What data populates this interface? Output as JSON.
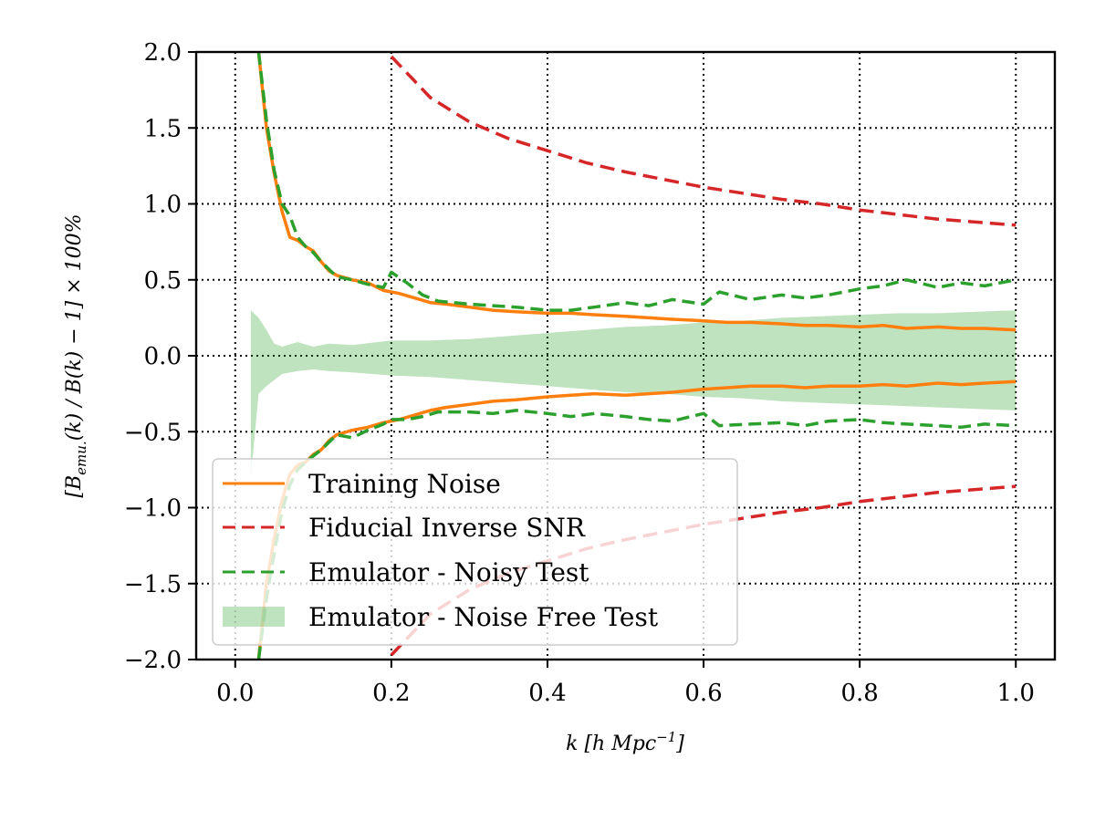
{
  "chart_data": {
    "type": "line",
    "title": "",
    "xlabel": "k [h Mpc^-1]",
    "ylabel": "[B_emu.(k) / B(k) − 1] × 100%",
    "xlim": [
      -0.05,
      1.05
    ],
    "ylim": [
      -2.0,
      2.0
    ],
    "xticks": [
      0.0,
      0.2,
      0.4,
      0.6,
      0.8,
      1.0
    ],
    "yticks": [
      -2.0,
      -1.5,
      -1.0,
      -0.5,
      0.0,
      0.5,
      1.0,
      1.5,
      2.0
    ],
    "xtick_labels": [
      "0.0",
      "0.2",
      "0.4",
      "0.6",
      "0.8",
      "1.0"
    ],
    "ytick_labels": [
      "−2.0",
      "−1.5",
      "−1.0",
      "−0.5",
      "0.0",
      "0.5",
      "1.0",
      "1.5",
      "2.0"
    ],
    "grid": true,
    "legend_position": "lower-left",
    "colors": {
      "training": "#ff7f0e",
      "snr": "#d62728",
      "noisy": "#2ca02c",
      "band": "#2ca02c"
    },
    "series": [
      {
        "name": "Training Noise",
        "style": "solid",
        "upper": {
          "x": [
            0.03,
            0.04,
            0.05,
            0.06,
            0.07,
            0.08,
            0.09,
            0.1,
            0.11,
            0.12,
            0.13,
            0.15,
            0.17,
            0.19,
            0.21,
            0.23,
            0.25,
            0.27,
            0.3,
            0.33,
            0.36,
            0.4,
            0.43,
            0.46,
            0.5,
            0.53,
            0.56,
            0.6,
            0.63,
            0.66,
            0.7,
            0.73,
            0.76,
            0.8,
            0.83,
            0.86,
            0.9,
            0.93,
            0.96,
            1.0
          ],
          "y": [
            2.0,
            1.5,
            1.2,
            0.95,
            0.78,
            0.76,
            0.72,
            0.69,
            0.62,
            0.56,
            0.53,
            0.5,
            0.48,
            0.43,
            0.41,
            0.38,
            0.35,
            0.34,
            0.32,
            0.3,
            0.29,
            0.28,
            0.28,
            0.27,
            0.26,
            0.25,
            0.24,
            0.23,
            0.22,
            0.22,
            0.21,
            0.2,
            0.2,
            0.19,
            0.2,
            0.18,
            0.19,
            0.18,
            0.18,
            0.17
          ]
        },
        "lower": {
          "x": [
            0.03,
            0.04,
            0.05,
            0.06,
            0.07,
            0.08,
            0.09,
            0.1,
            0.11,
            0.12,
            0.13,
            0.15,
            0.17,
            0.19,
            0.21,
            0.23,
            0.25,
            0.27,
            0.3,
            0.33,
            0.36,
            0.4,
            0.43,
            0.46,
            0.5,
            0.53,
            0.56,
            0.6,
            0.63,
            0.66,
            0.7,
            0.73,
            0.76,
            0.8,
            0.83,
            0.86,
            0.9,
            0.93,
            0.96,
            1.0
          ],
          "y": [
            -2.0,
            -1.5,
            -1.2,
            -0.95,
            -0.78,
            -0.72,
            -0.7,
            -0.65,
            -0.62,
            -0.56,
            -0.52,
            -0.49,
            -0.47,
            -0.44,
            -0.42,
            -0.39,
            -0.36,
            -0.34,
            -0.32,
            -0.3,
            -0.29,
            -0.27,
            -0.26,
            -0.25,
            -0.26,
            -0.25,
            -0.24,
            -0.22,
            -0.21,
            -0.2,
            -0.2,
            -0.21,
            -0.2,
            -0.2,
            -0.19,
            -0.2,
            -0.18,
            -0.19,
            -0.18,
            -0.17
          ]
        }
      },
      {
        "name": "Fiducial Inverse SNR",
        "style": "dashed",
        "upper": {
          "x": [
            0.2,
            0.25,
            0.3,
            0.35,
            0.4,
            0.45,
            0.5,
            0.55,
            0.6,
            0.65,
            0.7,
            0.75,
            0.8,
            0.85,
            0.9,
            0.95,
            1.0
          ],
          "y": [
            1.97,
            1.7,
            1.54,
            1.43,
            1.35,
            1.27,
            1.21,
            1.16,
            1.11,
            1.07,
            1.03,
            1.0,
            0.96,
            0.93,
            0.9,
            0.88,
            0.86
          ]
        },
        "lower": {
          "x": [
            0.2,
            0.25,
            0.3,
            0.35,
            0.4,
            0.45,
            0.5,
            0.55,
            0.6,
            0.65,
            0.7,
            0.75,
            0.8,
            0.85,
            0.9,
            0.95,
            1.0
          ],
          "y": [
            -1.97,
            -1.7,
            -1.54,
            -1.43,
            -1.35,
            -1.27,
            -1.21,
            -1.16,
            -1.11,
            -1.07,
            -1.03,
            -1.0,
            -0.96,
            -0.93,
            -0.9,
            -0.88,
            -0.86
          ]
        }
      },
      {
        "name": "Emulator - Noisy Test",
        "style": "dashed",
        "upper": {
          "x": [
            0.03,
            0.04,
            0.05,
            0.06,
            0.07,
            0.08,
            0.09,
            0.1,
            0.11,
            0.12,
            0.13,
            0.15,
            0.17,
            0.19,
            0.2,
            0.22,
            0.24,
            0.26,
            0.3,
            0.33,
            0.36,
            0.4,
            0.43,
            0.46,
            0.5,
            0.53,
            0.56,
            0.6,
            0.62,
            0.66,
            0.7,
            0.73,
            0.76,
            0.8,
            0.83,
            0.86,
            0.9,
            0.93,
            0.96,
            1.0
          ],
          "y": [
            2.0,
            1.55,
            1.22,
            1.0,
            0.92,
            0.78,
            0.72,
            0.68,
            0.62,
            0.57,
            0.52,
            0.5,
            0.47,
            0.45,
            0.55,
            0.48,
            0.4,
            0.36,
            0.34,
            0.33,
            0.32,
            0.3,
            0.3,
            0.32,
            0.35,
            0.33,
            0.37,
            0.34,
            0.42,
            0.37,
            0.4,
            0.38,
            0.4,
            0.44,
            0.46,
            0.5,
            0.45,
            0.48,
            0.46,
            0.5
          ]
        },
        "lower": {
          "x": [
            0.03,
            0.04,
            0.05,
            0.06,
            0.07,
            0.08,
            0.09,
            0.1,
            0.11,
            0.12,
            0.13,
            0.15,
            0.17,
            0.19,
            0.2,
            0.22,
            0.24,
            0.26,
            0.3,
            0.33,
            0.36,
            0.4,
            0.43,
            0.46,
            0.5,
            0.53,
            0.56,
            0.6,
            0.62,
            0.66,
            0.7,
            0.73,
            0.76,
            0.8,
            0.83,
            0.86,
            0.9,
            0.93,
            0.96,
            1.0
          ],
          "y": [
            -2.0,
            -1.6,
            -1.3,
            -1.02,
            -0.85,
            -0.75,
            -0.7,
            -0.66,
            -0.62,
            -0.57,
            -0.52,
            -0.54,
            -0.49,
            -0.45,
            -0.42,
            -0.42,
            -0.4,
            -0.37,
            -0.37,
            -0.38,
            -0.36,
            -0.38,
            -0.4,
            -0.38,
            -0.4,
            -0.42,
            -0.43,
            -0.38,
            -0.46,
            -0.45,
            -0.44,
            -0.46,
            -0.43,
            -0.42,
            -0.44,
            -0.45,
            -0.46,
            -0.47,
            -0.45,
            -0.46
          ]
        }
      },
      {
        "name": "Emulator - Noise Free Test",
        "style": "band",
        "x": [
          0.02,
          0.03,
          0.04,
          0.05,
          0.06,
          0.08,
          0.1,
          0.12,
          0.15,
          0.2,
          0.25,
          0.3,
          0.35,
          0.4,
          0.45,
          0.5,
          0.55,
          0.6,
          0.65,
          0.7,
          0.75,
          0.8,
          0.85,
          0.9,
          0.95,
          1.0
        ],
        "upper": [
          0.3,
          0.25,
          0.17,
          0.08,
          0.06,
          0.09,
          0.06,
          0.08,
          0.07,
          0.1,
          0.1,
          0.11,
          0.13,
          0.15,
          0.17,
          0.19,
          0.2,
          0.22,
          0.23,
          0.25,
          0.26,
          0.27,
          0.28,
          0.28,
          0.29,
          0.3
        ],
        "lower": [
          -0.8,
          -0.25,
          -0.2,
          -0.16,
          -0.12,
          -0.1,
          -0.09,
          -0.1,
          -0.11,
          -0.13,
          -0.14,
          -0.16,
          -0.18,
          -0.2,
          -0.22,
          -0.24,
          -0.25,
          -0.27,
          -0.28,
          -0.3,
          -0.31,
          -0.32,
          -0.33,
          -0.34,
          -0.35,
          -0.36
        ]
      }
    ]
  }
}
